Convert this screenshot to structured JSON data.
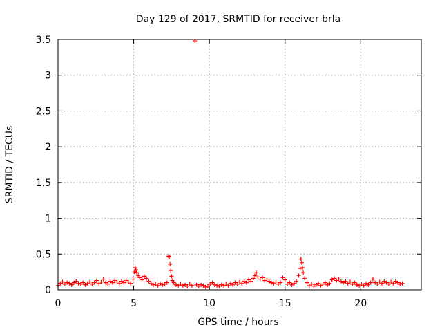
{
  "chart_data": {
    "type": "scatter",
    "title": "Day 129 of 2017, SRMTID for receiver brla",
    "xlabel": "GPS time / hours",
    "ylabel": "SRMTID / TECUs",
    "xlim": [
      0,
      24
    ],
    "ylim": [
      0,
      3.5
    ],
    "x_ticks": [
      0,
      5,
      10,
      15,
      20
    ],
    "x_tick_labels": [
      "0",
      "5",
      "10",
      "15",
      "20"
    ],
    "y_ticks": [
      0,
      0.5,
      1,
      1.5,
      2,
      2.5,
      3,
      3.5
    ],
    "y_tick_labels": [
      "0",
      "0.5",
      "1",
      "1.5",
      "2",
      "2.5",
      "3",
      "3.5"
    ],
    "grid": true,
    "legend": "none",
    "marker": "plus",
    "color": "#ff0000",
    "series": [
      {
        "name": "SRMTID",
        "points": [
          [
            0.0,
            0.06
          ],
          [
            0.15,
            0.09
          ],
          [
            0.3,
            0.11
          ],
          [
            0.45,
            0.08
          ],
          [
            0.6,
            0.1
          ],
          [
            0.75,
            0.09
          ],
          [
            0.9,
            0.07
          ],
          [
            1.05,
            0.1
          ],
          [
            1.2,
            0.12
          ],
          [
            1.35,
            0.09
          ],
          [
            1.5,
            0.08
          ],
          [
            1.65,
            0.1
          ],
          [
            1.8,
            0.07
          ],
          [
            1.95,
            0.09
          ],
          [
            2.1,
            0.11
          ],
          [
            2.25,
            0.08
          ],
          [
            2.4,
            0.1
          ],
          [
            2.55,
            0.13
          ],
          [
            2.7,
            0.09
          ],
          [
            2.85,
            0.11
          ],
          [
            3.0,
            0.15
          ],
          [
            3.15,
            0.1
          ],
          [
            3.3,
            0.08
          ],
          [
            3.45,
            0.12
          ],
          [
            3.6,
            0.1
          ],
          [
            3.75,
            0.13
          ],
          [
            3.9,
            0.11
          ],
          [
            4.05,
            0.09
          ],
          [
            4.2,
            0.12
          ],
          [
            4.35,
            0.1
          ],
          [
            4.5,
            0.13
          ],
          [
            4.65,
            0.11
          ],
          [
            4.8,
            0.09
          ],
          [
            4.95,
            0.15
          ],
          [
            5.05,
            0.25
          ],
          [
            5.1,
            0.31
          ],
          [
            5.15,
            0.28
          ],
          [
            5.2,
            0.24
          ],
          [
            5.3,
            0.2
          ],
          [
            5.4,
            0.17
          ],
          [
            5.55,
            0.14
          ],
          [
            5.7,
            0.19
          ],
          [
            5.85,
            0.16
          ],
          [
            6.0,
            0.12
          ],
          [
            6.15,
            0.09
          ],
          [
            6.3,
            0.07
          ],
          [
            6.45,
            0.08
          ],
          [
            6.6,
            0.06
          ],
          [
            6.75,
            0.09
          ],
          [
            6.9,
            0.07
          ],
          [
            7.05,
            0.08
          ],
          [
            7.2,
            0.1
          ],
          [
            7.3,
            0.47
          ],
          [
            7.35,
            0.46
          ],
          [
            7.4,
            0.36
          ],
          [
            7.45,
            0.27
          ],
          [
            7.5,
            0.19
          ],
          [
            7.55,
            0.13
          ],
          [
            7.65,
            0.1
          ],
          [
            7.8,
            0.07
          ],
          [
            7.95,
            0.06
          ],
          [
            8.1,
            0.08
          ],
          [
            8.25,
            0.06
          ],
          [
            8.4,
            0.07
          ],
          [
            8.55,
            0.05
          ],
          [
            8.7,
            0.08
          ],
          [
            8.85,
            0.06
          ],
          [
            9.05,
            3.48
          ],
          [
            9.15,
            0.07
          ],
          [
            9.3,
            0.05
          ],
          [
            9.45,
            0.07
          ],
          [
            9.6,
            0.06
          ],
          [
            9.75,
            0.04
          ],
          [
            9.9,
            0.05
          ],
          [
            10.05,
            0.08
          ],
          [
            10.2,
            0.1
          ],
          [
            10.35,
            0.07
          ],
          [
            10.5,
            0.06
          ],
          [
            10.65,
            0.05
          ],
          [
            10.8,
            0.07
          ],
          [
            10.95,
            0.06
          ],
          [
            11.1,
            0.08
          ],
          [
            11.25,
            0.06
          ],
          [
            11.4,
            0.09
          ],
          [
            11.55,
            0.07
          ],
          [
            11.7,
            0.1
          ],
          [
            11.85,
            0.08
          ],
          [
            12.0,
            0.11
          ],
          [
            12.15,
            0.09
          ],
          [
            12.3,
            0.12
          ],
          [
            12.45,
            0.1
          ],
          [
            12.6,
            0.14
          ],
          [
            12.75,
            0.12
          ],
          [
            12.9,
            0.16
          ],
          [
            13.0,
            0.2
          ],
          [
            13.1,
            0.24
          ],
          [
            13.2,
            0.18
          ],
          [
            13.35,
            0.15
          ],
          [
            13.5,
            0.17
          ],
          [
            13.65,
            0.13
          ],
          [
            13.8,
            0.15
          ],
          [
            13.95,
            0.12
          ],
          [
            14.1,
            0.1
          ],
          [
            14.25,
            0.09
          ],
          [
            14.4,
            0.11
          ],
          [
            14.55,
            0.08
          ],
          [
            14.7,
            0.1
          ],
          [
            14.85,
            0.17
          ],
          [
            15.0,
            0.14
          ],
          [
            15.15,
            0.08
          ],
          [
            15.3,
            0.1
          ],
          [
            15.45,
            0.07
          ],
          [
            15.6,
            0.09
          ],
          [
            15.75,
            0.12
          ],
          [
            15.9,
            0.2
          ],
          [
            16.0,
            0.3
          ],
          [
            16.05,
            0.43
          ],
          [
            16.1,
            0.38
          ],
          [
            16.15,
            0.31
          ],
          [
            16.2,
            0.24
          ],
          [
            16.3,
            0.16
          ],
          [
            16.45,
            0.1
          ],
          [
            16.6,
            0.06
          ],
          [
            16.75,
            0.08
          ],
          [
            16.9,
            0.05
          ],
          [
            17.05,
            0.07
          ],
          [
            17.2,
            0.09
          ],
          [
            17.35,
            0.06
          ],
          [
            17.5,
            0.08
          ],
          [
            17.65,
            0.1
          ],
          [
            17.8,
            0.07
          ],
          [
            17.95,
            0.09
          ],
          [
            18.1,
            0.14
          ],
          [
            18.25,
            0.16
          ],
          [
            18.4,
            0.13
          ],
          [
            18.55,
            0.15
          ],
          [
            18.7,
            0.12
          ],
          [
            18.85,
            0.1
          ],
          [
            19.0,
            0.12
          ],
          [
            19.15,
            0.09
          ],
          [
            19.3,
            0.11
          ],
          [
            19.45,
            0.08
          ],
          [
            19.6,
            0.1
          ],
          [
            19.75,
            0.07
          ],
          [
            19.9,
            0.06
          ],
          [
            20.05,
            0.08
          ],
          [
            20.2,
            0.06
          ],
          [
            20.35,
            0.09
          ],
          [
            20.5,
            0.07
          ],
          [
            20.65,
            0.1
          ],
          [
            20.8,
            0.15
          ],
          [
            20.95,
            0.1
          ],
          [
            21.1,
            0.08
          ],
          [
            21.25,
            0.11
          ],
          [
            21.4,
            0.09
          ],
          [
            21.55,
            0.12
          ],
          [
            21.7,
            0.1
          ],
          [
            21.85,
            0.08
          ],
          [
            22.0,
            0.11
          ],
          [
            22.15,
            0.09
          ],
          [
            22.3,
            0.12
          ],
          [
            22.45,
            0.1
          ],
          [
            22.6,
            0.08
          ],
          [
            22.75,
            0.09
          ]
        ]
      }
    ]
  }
}
